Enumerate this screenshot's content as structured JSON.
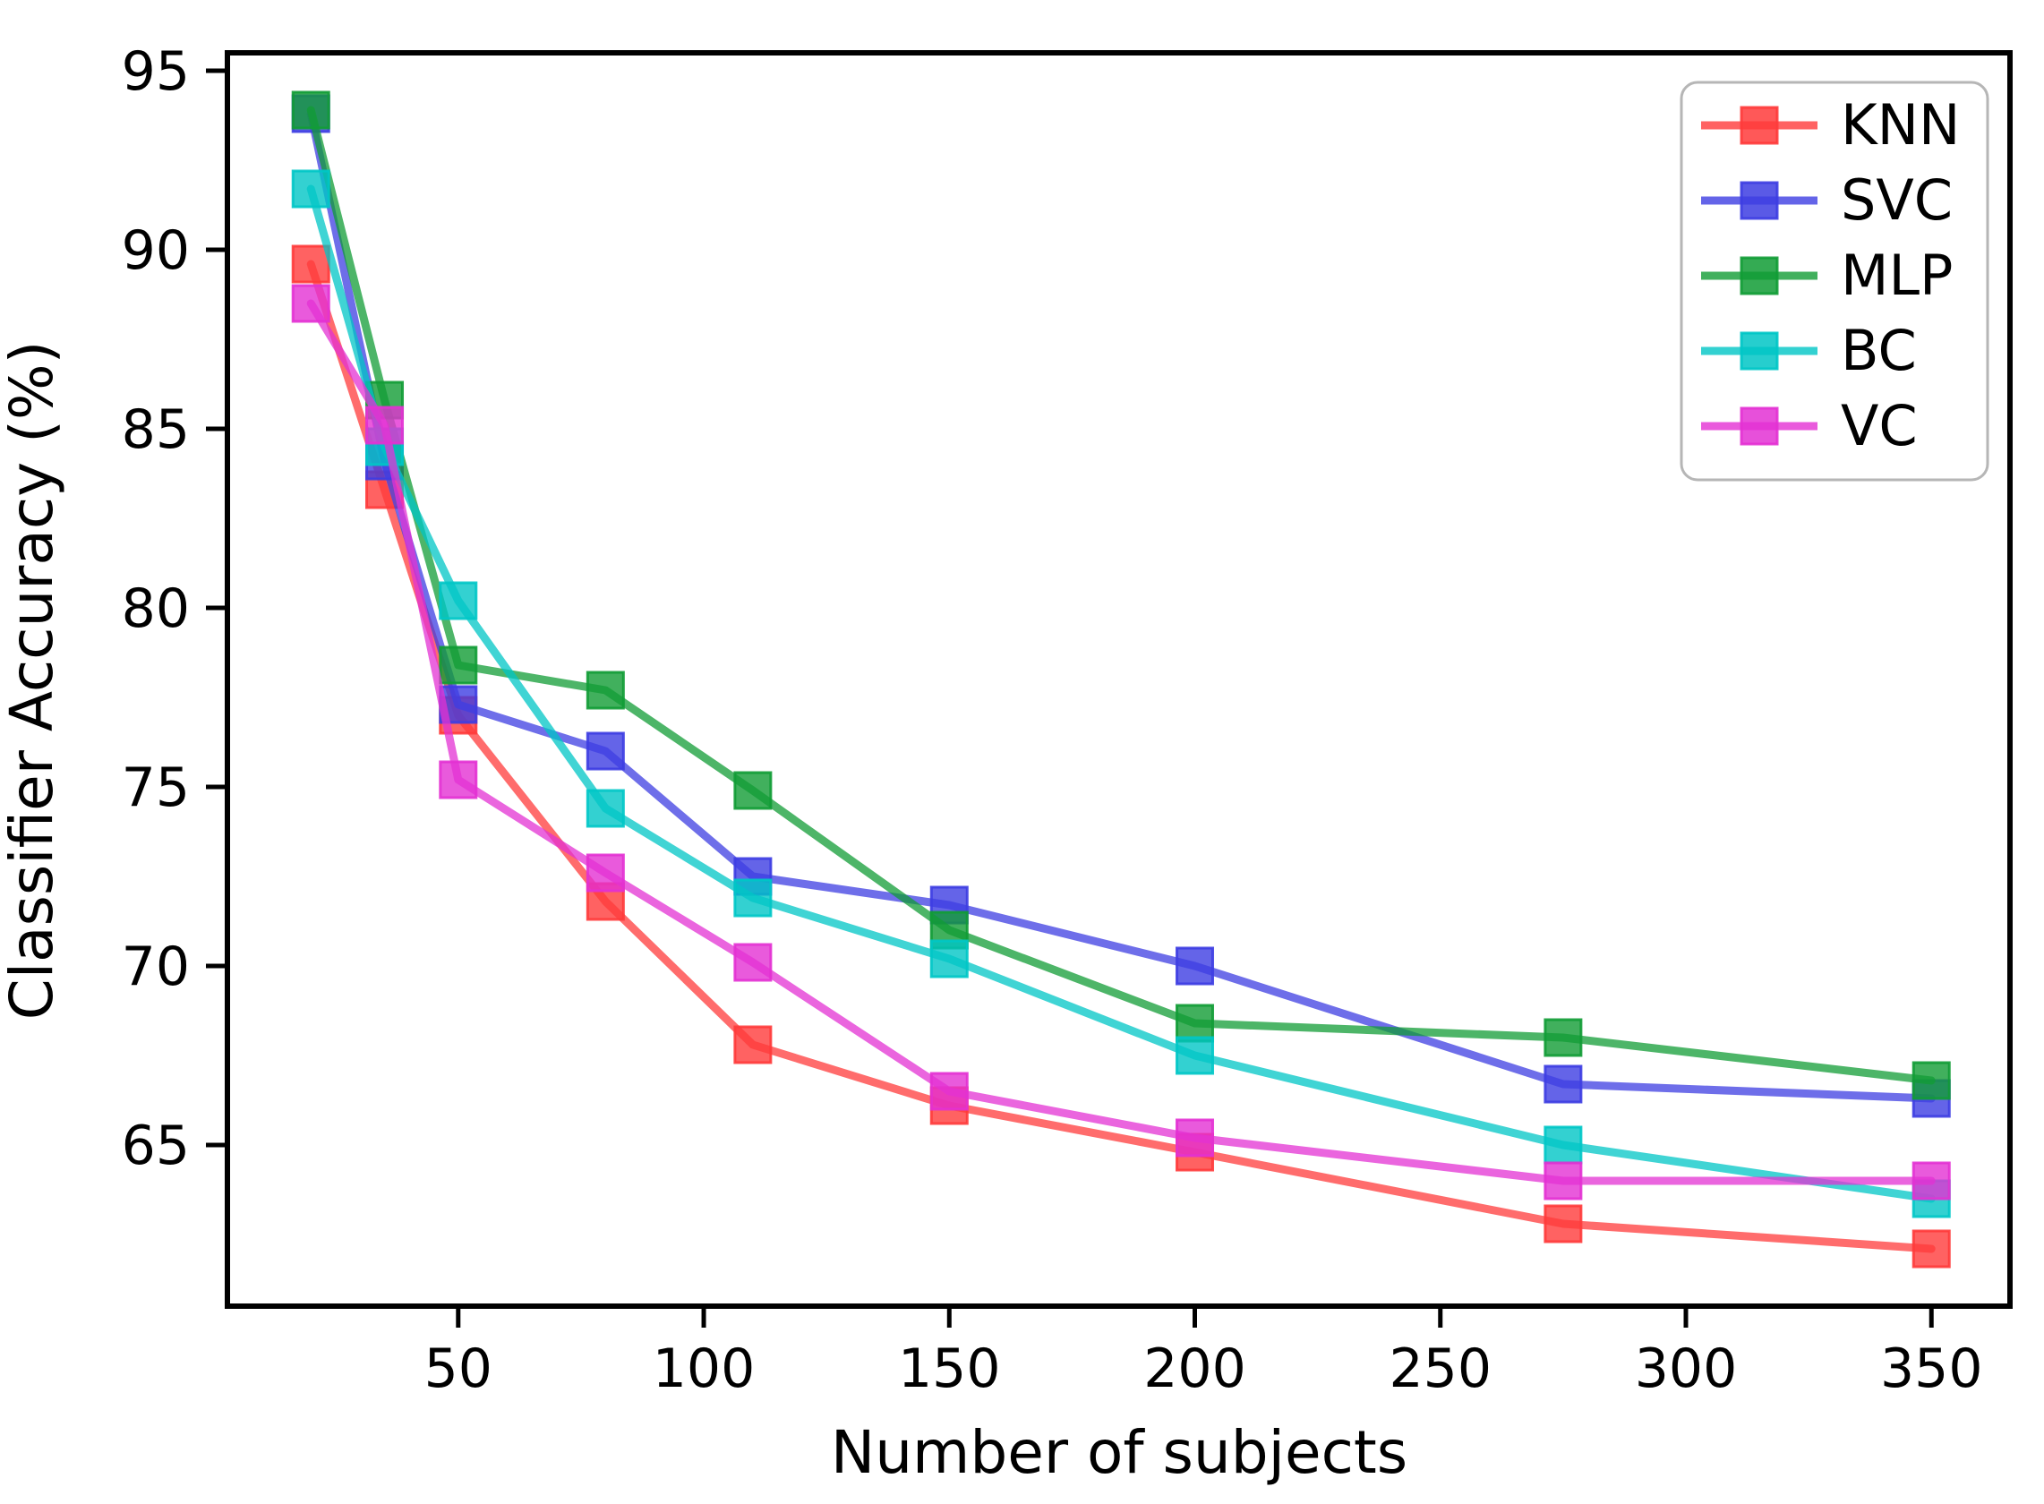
{
  "chart_data": {
    "type": "line",
    "title": "",
    "xlabel": "Number of subjects",
    "ylabel": "Classifier Accuracy (%)",
    "marker": "square",
    "grid": false,
    "legend_position": "upper right",
    "x": [
      20,
      35,
      50,
      80,
      110,
      150,
      200,
      275,
      350
    ],
    "series": [
      {
        "name": "KNN",
        "color": "#ff3b3b",
        "values": [
          89.6,
          83.3,
          77.0,
          71.8,
          67.8,
          66.1,
          64.8,
          62.8,
          62.1
        ]
      },
      {
        "name": "SVC",
        "color": "#3d3de2",
        "values": [
          93.8,
          84.1,
          77.3,
          76.0,
          72.5,
          71.7,
          70.0,
          66.7,
          66.3
        ]
      },
      {
        "name": "MLP",
        "color": "#119c35",
        "values": [
          93.9,
          85.8,
          78.4,
          77.7,
          74.9,
          71.0,
          68.4,
          68.0,
          66.8
        ]
      },
      {
        "name": "BC",
        "color": "#00c6c6",
        "values": [
          91.7,
          84.5,
          80.2,
          74.4,
          71.9,
          70.2,
          67.5,
          65.0,
          63.5
        ]
      },
      {
        "name": "VC",
        "color": "#e331d3",
        "values": [
          88.5,
          85.1,
          75.2,
          72.6,
          70.1,
          66.5,
          65.2,
          64.0,
          64.0
        ]
      }
    ],
    "xticks": [
      50,
      100,
      150,
      200,
      250,
      300,
      350
    ],
    "yticks": [
      65,
      70,
      75,
      80,
      85,
      90,
      95
    ],
    "xlim": [
      3,
      366
    ],
    "ylim": [
      60.5,
      95.5
    ],
    "axis_color": "#000000",
    "background_color": "#ffffff",
    "legend_labels": [
      "KNN",
      "SVC",
      "MLP",
      "BC",
      "VC"
    ]
  }
}
